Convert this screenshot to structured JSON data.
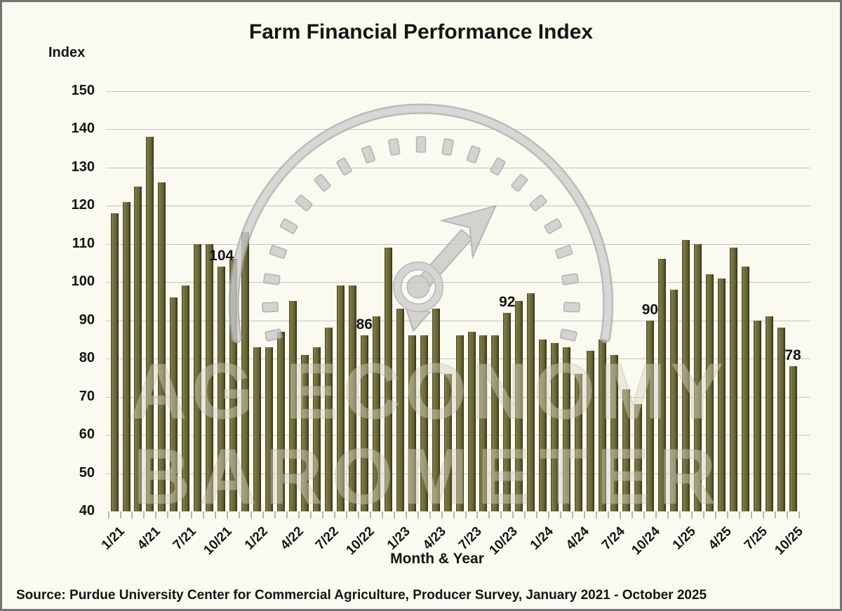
{
  "title": "Farm Financial Performance Index",
  "y_axis_title": "Index",
  "x_axis_title": "Month & Year",
  "source": "Source: Purdue University Center for Commercial Agriculture, Producer Survey, January 2021 - October 2025",
  "watermark": {
    "line1": "AG ECONOMY",
    "line2": "BAROMETER"
  },
  "colors": {
    "bar": "#6b683a",
    "grid": "#c4c4c4",
    "text": "#141414",
    "background": "#fbfaf1",
    "frame_border": "#737373",
    "watermark_gray": "#c8c8c8"
  },
  "chart_data": {
    "type": "bar",
    "title": "Farm Financial Performance Index",
    "xlabel": "Month & Year",
    "ylabel": "Index",
    "ylim": [
      40,
      150
    ],
    "y_ticks": [
      40,
      50,
      60,
      70,
      80,
      90,
      100,
      110,
      120,
      130,
      140,
      150
    ],
    "grid": true,
    "months": [
      "1/21",
      "2/21",
      "3/21",
      "4/21",
      "5/21",
      "6/21",
      "7/21",
      "8/21",
      "9/21",
      "10/21",
      "11/21",
      "12/21",
      "1/22",
      "2/22",
      "3/22",
      "4/22",
      "5/22",
      "6/22",
      "7/22",
      "8/22",
      "9/22",
      "10/22",
      "11/22",
      "12/22",
      "1/23",
      "2/23",
      "3/23",
      "4/23",
      "5/23",
      "6/23",
      "7/23",
      "8/23",
      "9/23",
      "10/23",
      "11/23",
      "12/23",
      "1/24",
      "2/24",
      "3/24",
      "4/24",
      "5/24",
      "6/24",
      "7/24",
      "8/24",
      "9/24",
      "10/24",
      "11/24",
      "12/24",
      "1/25",
      "2/25",
      "3/25",
      "4/25",
      "5/25",
      "6/25",
      "7/25",
      "8/25",
      "9/25",
      "10/25"
    ],
    "values": [
      118,
      121,
      125,
      138,
      126,
      96,
      99,
      110,
      110,
      104,
      106,
      113,
      83,
      83,
      87,
      95,
      81,
      83,
      88,
      99,
      99,
      86,
      91,
      109,
      93,
      86,
      86,
      93,
      76,
      86,
      87,
      86,
      86,
      92,
      95,
      97,
      85,
      84,
      83,
      76,
      82,
      85,
      81,
      72,
      68,
      90,
      106,
      98,
      111,
      110,
      102,
      101,
      109,
      104,
      90,
      91,
      88,
      78
    ],
    "x_tick_labels": [
      "1/21",
      "4/21",
      "7/21",
      "10/21",
      "1/22",
      "4/22",
      "7/22",
      "10/22",
      "1/23",
      "4/23",
      "7/23",
      "10/23",
      "1/24",
      "4/24",
      "7/24",
      "10/24",
      "1/25",
      "4/25",
      "7/25",
      "10/25"
    ],
    "data_labels": [
      {
        "month": "10/21",
        "value": 104
      },
      {
        "month": "10/22",
        "value": 86
      },
      {
        "month": "10/23",
        "value": 92
      },
      {
        "month": "10/24",
        "value": 90
      },
      {
        "month": "10/25",
        "value": 78
      }
    ],
    "legend": "none"
  }
}
